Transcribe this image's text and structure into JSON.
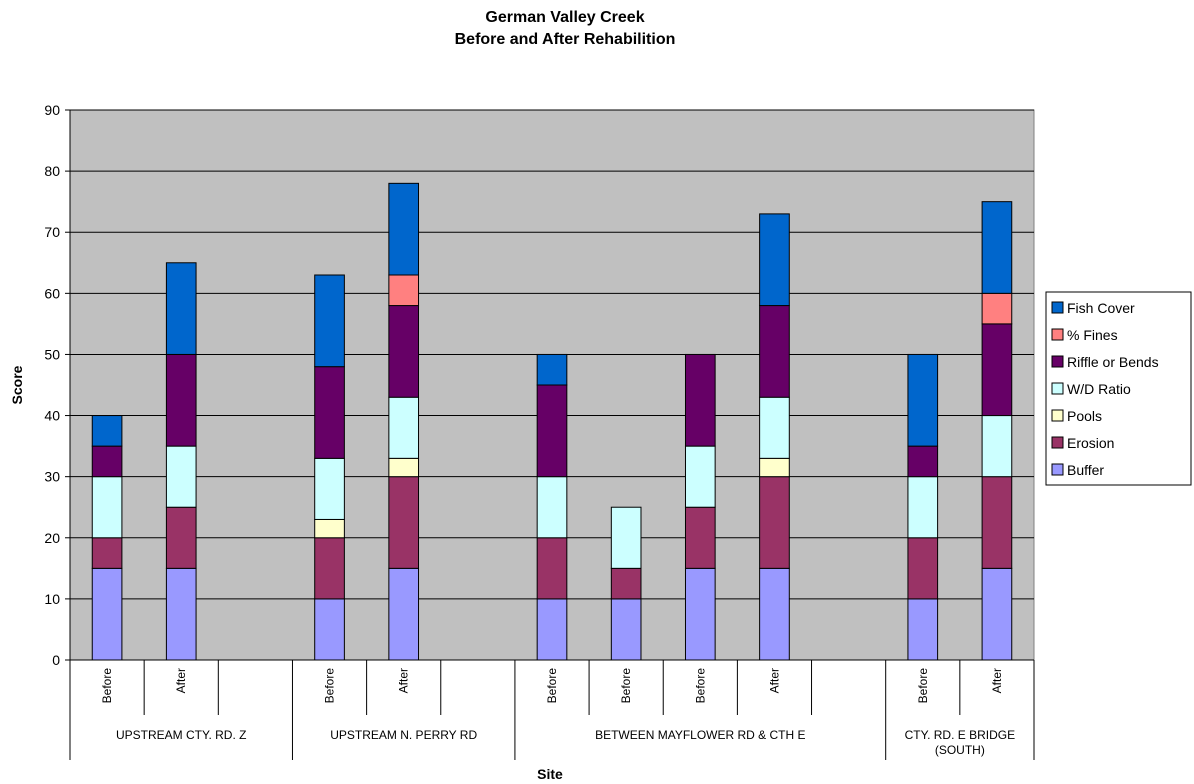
{
  "chart_data": {
    "type": "bar",
    "stacked": true,
    "title": [
      "German Valley Creek",
      "Before and After Rehabilition"
    ],
    "xlabel": "Site",
    "ylabel": "Score",
    "ylim": [
      0,
      90
    ],
    "yticks": [
      0,
      10,
      20,
      30,
      40,
      50,
      60,
      70,
      80,
      90
    ],
    "grid": true,
    "legend_position": "right",
    "background_color": "#c0c0c0",
    "groups": [
      {
        "label": "UPSTREAM CTY. RD. Z",
        "categories": [
          "Before",
          "After",
          ""
        ]
      },
      {
        "label": "UPSTREAM N. PERRY RD",
        "categories": [
          "Before",
          "After",
          ""
        ]
      },
      {
        "label": "BETWEEN MAYFLOWER RD & CTH E",
        "categories": [
          "Before",
          "Before",
          "Before",
          "After",
          ""
        ]
      },
      {
        "label": "CTY. RD. E BRIDGE (SOUTH)",
        "label_lines": [
          "CTY. RD. E BRIDGE",
          "(SOUTH)"
        ],
        "categories": [
          "Before",
          "After"
        ]
      }
    ],
    "categories": [
      "Before",
      "After",
      "",
      "Before",
      "After",
      "",
      "Before",
      "Before",
      "Before",
      "After",
      "",
      "Before",
      "After"
    ],
    "series": [
      {
        "name": "Buffer",
        "color": "#9999ff",
        "values": [
          15,
          15,
          0,
          10,
          15,
          0,
          10,
          10,
          15,
          15,
          0,
          10,
          15
        ]
      },
      {
        "name": "Erosion",
        "color": "#993366",
        "values": [
          5,
          10,
          0,
          10,
          15,
          0,
          10,
          5,
          10,
          15,
          0,
          10,
          15
        ]
      },
      {
        "name": "Pools",
        "color": "#ffffcc",
        "values": [
          0,
          0,
          0,
          3,
          3,
          0,
          0,
          0,
          0,
          3,
          0,
          0,
          0
        ]
      },
      {
        "name": "W/D Ratio",
        "color": "#ccffff",
        "values": [
          10,
          10,
          0,
          10,
          10,
          0,
          10,
          10,
          10,
          10,
          0,
          10,
          10
        ]
      },
      {
        "name": "Riffle or Bends",
        "color": "#660066",
        "values": [
          5,
          15,
          0,
          15,
          15,
          0,
          15,
          0,
          15,
          15,
          0,
          5,
          15
        ]
      },
      {
        "name": "% Fines",
        "color": "#ff8080",
        "values": [
          0,
          0,
          0,
          0,
          5,
          0,
          0,
          0,
          0,
          0,
          0,
          0,
          5
        ]
      },
      {
        "name": "Fish Cover",
        "color": "#0066cc",
        "values": [
          5,
          15,
          0,
          15,
          15,
          0,
          5,
          0,
          0,
          15,
          0,
          15,
          15
        ]
      }
    ]
  }
}
